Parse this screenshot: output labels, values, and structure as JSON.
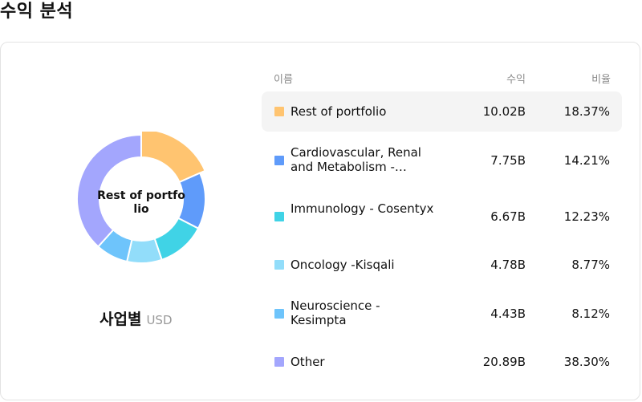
{
  "page": {
    "title": "수익 분석"
  },
  "chart": {
    "center_label": "Rest of portfolio",
    "caption_main": "사업별",
    "caption_unit": "USD"
  },
  "table": {
    "headers": {
      "name": "이름",
      "revenue": "수익",
      "ratio": "비율"
    },
    "rows": [
      {
        "name": "Rest of portfolio",
        "revenue": "10.02B",
        "ratio": "18.37%",
        "color": "#FFC470"
      },
      {
        "name": "Cardiovascular, Renal and Metabolism -…",
        "revenue": "7.75B",
        "ratio": "14.21%",
        "color": "#5F9BFA"
      },
      {
        "name": "Immunology - Cosentyx",
        "revenue": "6.67B",
        "ratio": "12.23%",
        "color": "#40D3E6"
      },
      {
        "name": "Oncology -Kisqali",
        "revenue": "4.78B",
        "ratio": "8.77%",
        "color": "#92DDFA"
      },
      {
        "name": "Neuroscience - Kesimpta",
        "revenue": "4.43B",
        "ratio": "8.12%",
        "color": "#6EC4FB"
      },
      {
        "name": "Other",
        "revenue": "20.89B",
        "ratio": "38.30%",
        "color": "#A3A6FD"
      }
    ],
    "selected_index": 0
  },
  "chart_data": {
    "type": "pie",
    "categories": [
      "Rest of portfolio",
      "Cardiovascular, Renal and Metabolism -…",
      "Immunology - Cosentyx",
      "Oncology -Kisqali",
      "Neuroscience - Kesimpta",
      "Other"
    ],
    "values": [
      18.37,
      14.21,
      12.23,
      8.77,
      8.12,
      38.3
    ],
    "colors": [
      "#FFC470",
      "#5F9BFA",
      "#40D3E6",
      "#92DDFA",
      "#6EC4FB",
      "#A3A6FD"
    ],
    "highlighted": "Rest of portfolio"
  }
}
